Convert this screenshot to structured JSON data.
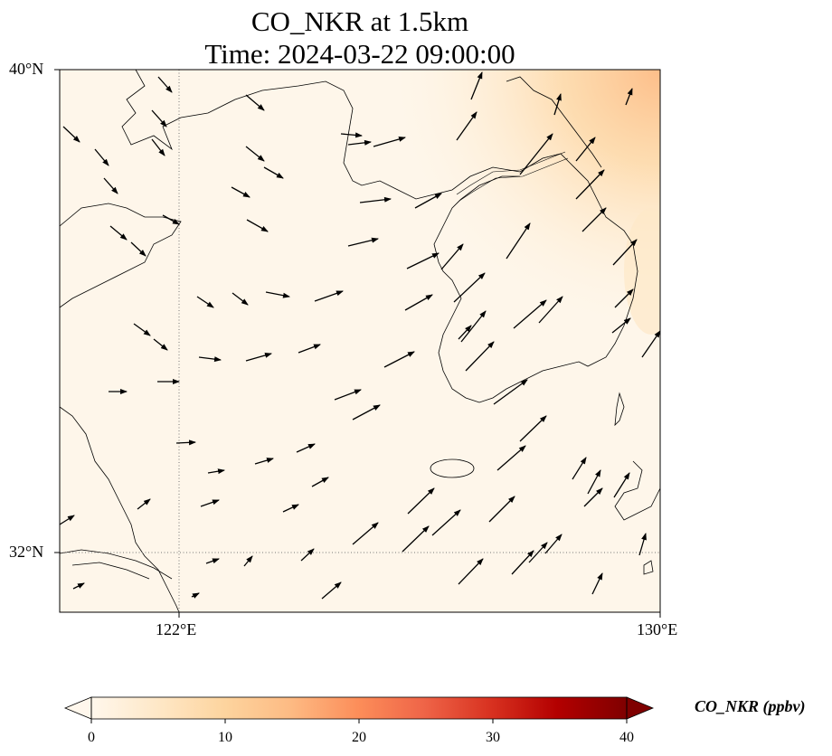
{
  "title": {
    "line1": "CO_NKR at 1.5km",
    "line2": "Time: 2024-03-22 09:00:00"
  },
  "map": {
    "projection": "lat-lon",
    "extent": {
      "lon_min": 120.4,
      "lon_max": 130.0,
      "lat_min": 31.0,
      "lat_max": 40.0
    },
    "gridlines": {
      "lon": [
        122,
        130
      ],
      "lat": [
        32,
        40
      ],
      "style": "dotted"
    },
    "lon_tick_labels": [
      "122°E",
      "130°E"
    ],
    "lat_tick_labels": [
      "40°N",
      "32°N"
    ],
    "field": {
      "variable": "CO_NKR",
      "background_level_ppbv": 1,
      "enhanced_regions": [
        {
          "where": "northeast corner (North Korea / Liaodong border)",
          "level_ppbv": 12
        },
        {
          "where": "east edge over Korean peninsula east coast",
          "level_ppbv": 8
        }
      ]
    },
    "wind_vectors": "arrows indicating flow toward the northeast / east over the sea and toward southeast over northern land"
  },
  "colorbar": {
    "label": "CO_NKR (ppbv)",
    "ticks": [
      "0",
      "10",
      "20",
      "30",
      "40"
    ],
    "min": 0,
    "max": 40,
    "colormap": "OrRd",
    "colors": [
      "#fff7ec",
      "#fee8c8",
      "#fdd49e",
      "#fdbb84",
      "#fc8d59",
      "#ef6548",
      "#d7301f",
      "#b30000",
      "#7f0000"
    ],
    "extend": "both"
  }
}
